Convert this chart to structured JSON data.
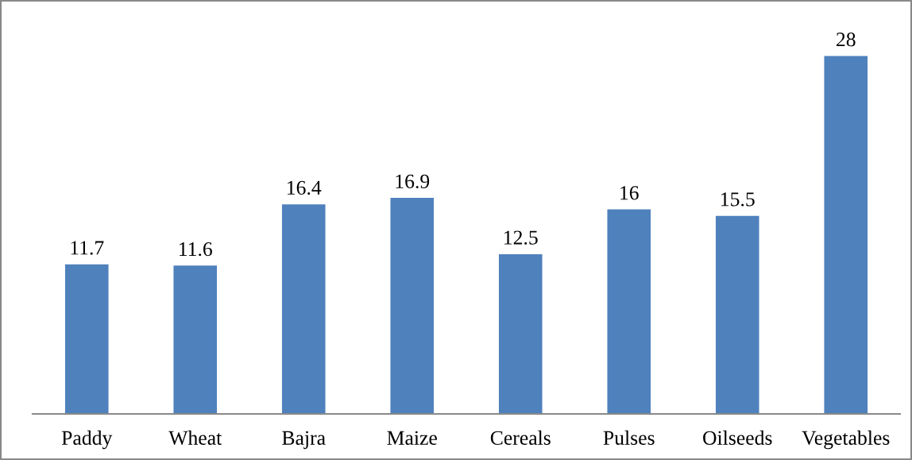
{
  "chart_data": {
    "type": "bar",
    "categories": [
      "Paddy",
      "Wheat",
      "Bajra",
      "Maize",
      "Cereals",
      "Pulses",
      "Oilseeds",
      "Vegetables"
    ],
    "values": [
      11.7,
      11.6,
      16.4,
      16.9,
      12.5,
      16,
      15.5,
      28
    ],
    "color": "#4f81bd",
    "tick_labels": "x",
    "data_labels": true,
    "grid": false,
    "legend": false
  }
}
